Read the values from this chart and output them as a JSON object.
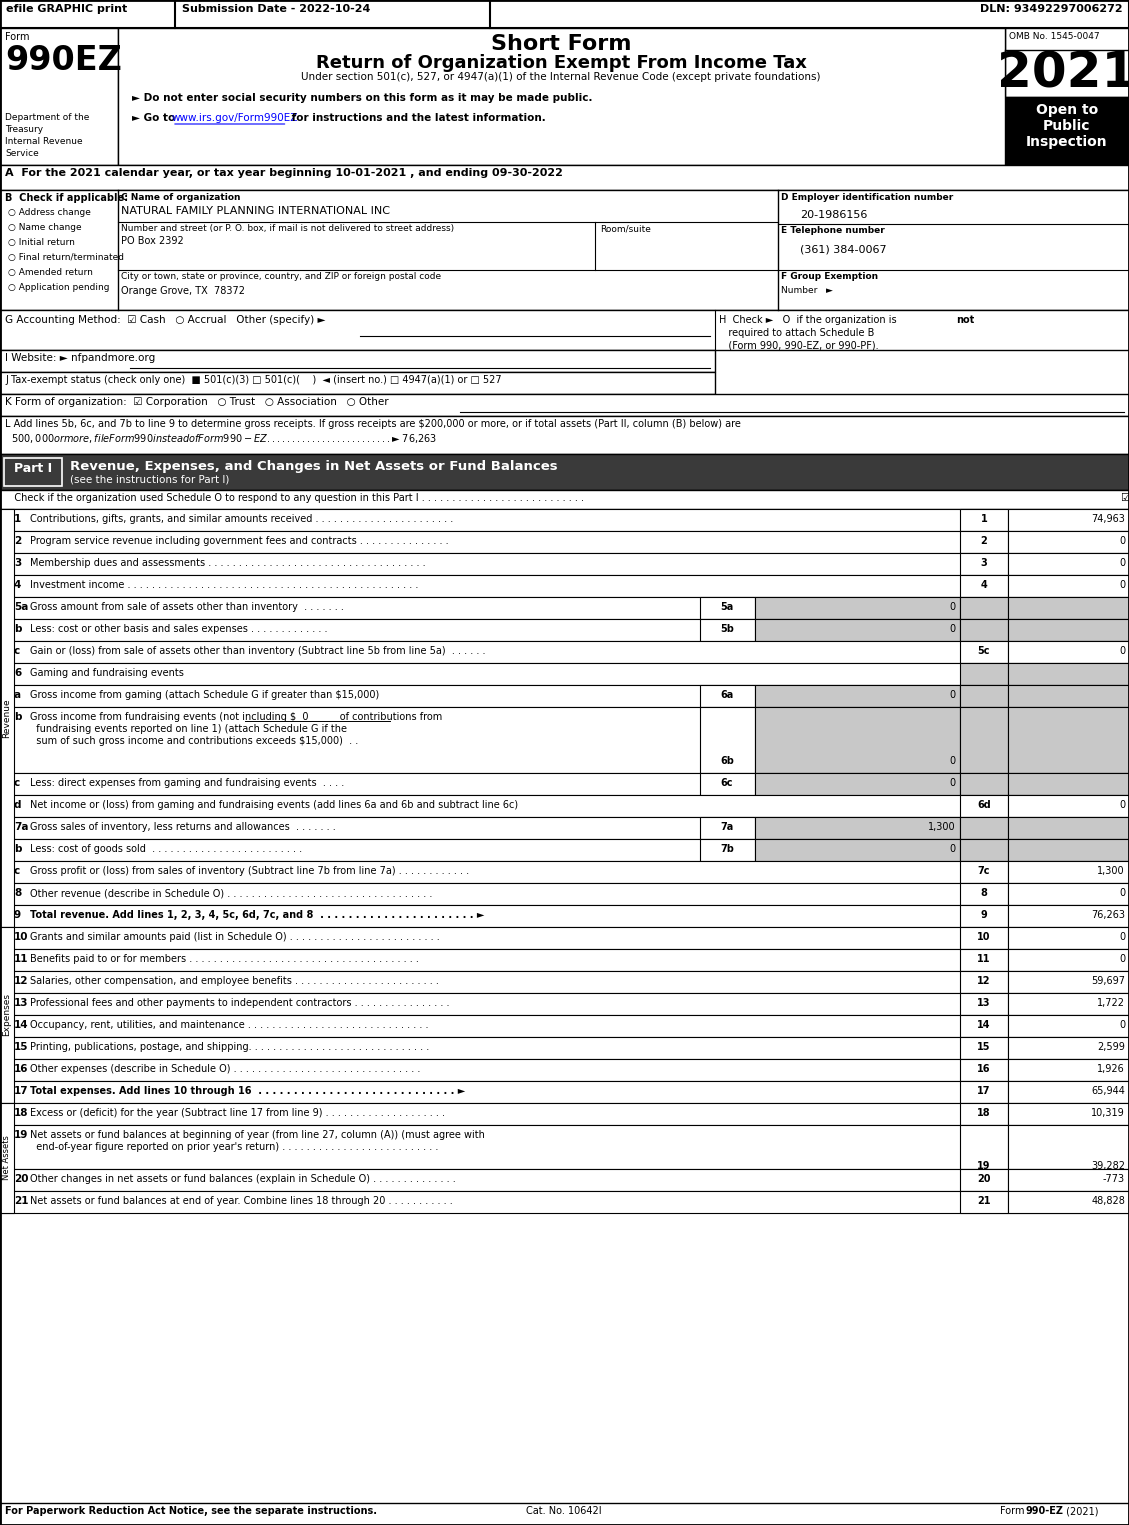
{
  "title_short": "Short Form",
  "title_long": "Return of Organization Exempt From Income Tax",
  "subtitle": "Under section 501(c), 527, or 4947(a)(1) of the Internal Revenue Code (except private foundations)",
  "year": "2021",
  "omb": "OMB No. 1545-0047",
  "form_number": "990EZ",
  "dept1": "Department of the",
  "dept2": "Treasury",
  "dept3": "Internal Revenue",
  "dept4": "Service",
  "open_to": "Open to\nPublic\nInspection",
  "efile_text": "efile GRAPHIC print",
  "submission_date": "Submission Date - 2022-10-24",
  "dln": "DLN: 93492297006272",
  "bullet1": "► Do not enter social security numbers on this form as it may be made public.",
  "bullet2_pre": "► Go to ",
  "bullet2_url": "www.irs.gov/Form990EZ",
  "bullet2_post": " for instructions and the latest information.",
  "line_A": "A  For the 2021 calendar year, or tax year beginning 10-01-2021 , and ending 09-30-2022",
  "checkboxes_B": [
    "Address change",
    "Name change",
    "Initial return",
    "Final return/terminated",
    "Amended return",
    "Application pending"
  ],
  "org_name": "NATURAL FAMILY PLANNING INTERNATIONAL INC",
  "street_label": "Number and street (or P. O. box, if mail is not delivered to street address)",
  "room_label": "Room/suite",
  "street_val": "PO Box 2392",
  "city_label": "City or town, state or province, country, and ZIP or foreign postal code",
  "city_val": "Orange Grove, TX  78372",
  "ein": "20-1986156",
  "phone": "(361) 384-0067",
  "footer_left": "For Paperwork Reduction Act Notice, see the separate instructions.",
  "footer_cat": "Cat. No. 10642I",
  "footer_right": "Form 990-EZ (2021)"
}
